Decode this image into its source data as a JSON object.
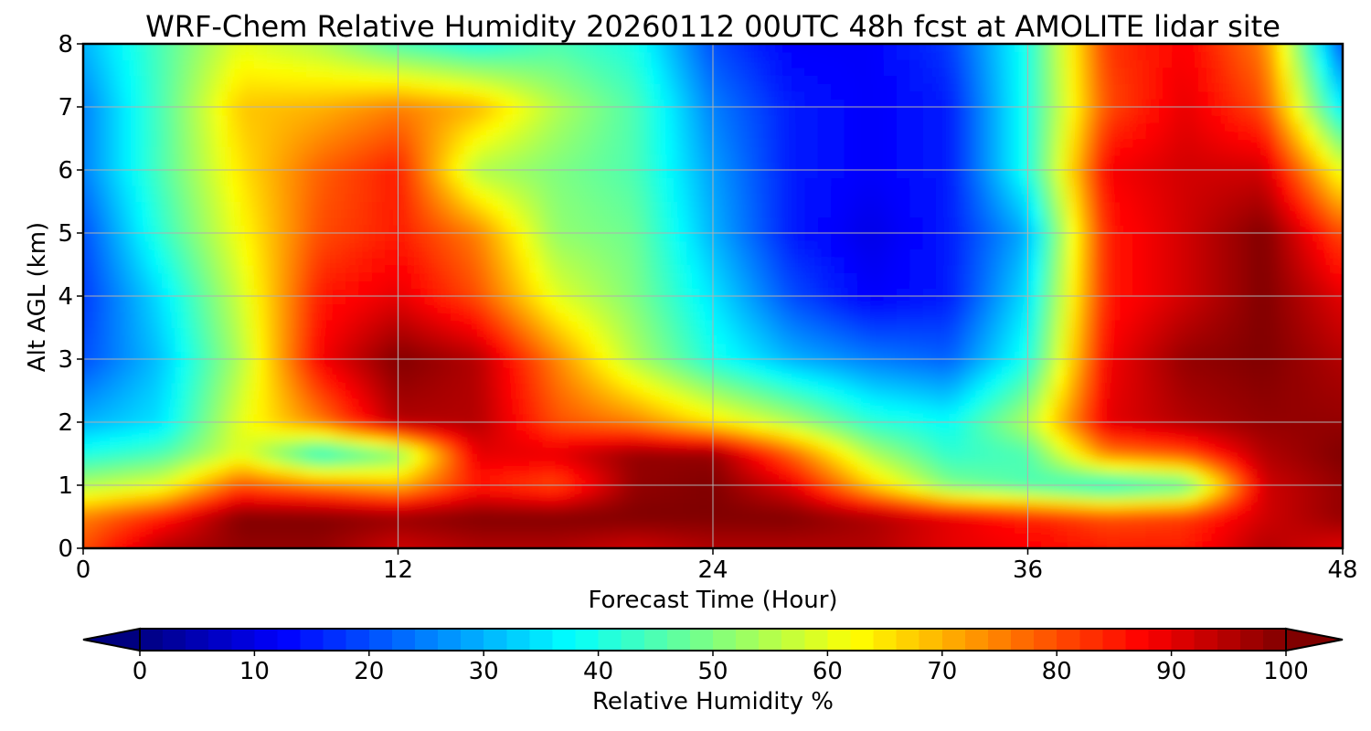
{
  "chart_data": {
    "type": "heatmap",
    "title": "WRF-Chem Relative Humidity 20260112 00UTC 48h fcst at AMOLITE lidar site",
    "xlabel": "Forecast Time (Hour)",
    "ylabel": "Alt AGL (km)",
    "xlim": [
      0,
      48
    ],
    "ylim": [
      0,
      8
    ],
    "x_ticks": [
      "0",
      "12",
      "24",
      "36",
      "48"
    ],
    "y_ticks": [
      "0",
      "1",
      "2",
      "3",
      "4",
      "5",
      "6",
      "7",
      "8"
    ],
    "grid": true,
    "colormap": "jet",
    "colorbar": {
      "label": "Relative Humidity %",
      "range": [
        0,
        100
      ],
      "extend": "both",
      "ticks": [
        "0",
        "10",
        "20",
        "30",
        "40",
        "50",
        "60",
        "70",
        "80",
        "90",
        "100"
      ]
    },
    "x_hours": [
      0,
      3,
      6,
      9,
      12,
      15,
      18,
      21,
      24,
      27,
      30,
      33,
      36,
      39,
      42,
      45,
      48
    ],
    "y_km": [
      0,
      0.5,
      1,
      1.5,
      2,
      3,
      4,
      5,
      6,
      7,
      8
    ],
    "z_rh_percent": [
      [
        80,
        95,
        98,
        98,
        92,
        95,
        95,
        92,
        95,
        95,
        95,
        90,
        88,
        85,
        85,
        95,
        90
      ],
      [
        75,
        85,
        100,
        100,
        98,
        100,
        100,
        100,
        100,
        100,
        96,
        90,
        85,
        80,
        82,
        92,
        98
      ],
      [
        55,
        60,
        80,
        75,
        70,
        85,
        80,
        98,
        100,
        90,
        68,
        50,
        45,
        40,
        45,
        92,
        98
      ],
      [
        40,
        45,
        60,
        40,
        50,
        90,
        90,
        98,
        98,
        78,
        55,
        42,
        45,
        75,
        80,
        95,
        100
      ],
      [
        30,
        35,
        60,
        75,
        95,
        95,
        80,
        75,
        65,
        55,
        42,
        38,
        55,
        90,
        95,
        98,
        98
      ],
      [
        20,
        32,
        55,
        88,
        100,
        95,
        75,
        55,
        40,
        30,
        25,
        22,
        40,
        88,
        98,
        100,
        95
      ],
      [
        18,
        35,
        58,
        85,
        90,
        80,
        60,
        50,
        35,
        20,
        12,
        15,
        35,
        85,
        92,
        100,
        90
      ],
      [
        20,
        42,
        62,
        80,
        85,
        75,
        52,
        48,
        30,
        15,
        10,
        15,
        30,
        85,
        92,
        100,
        80
      ],
      [
        25,
        45,
        65,
        78,
        85,
        55,
        50,
        45,
        28,
        15,
        12,
        15,
        40,
        88,
        92,
        92,
        60
      ],
      [
        25,
        45,
        68,
        70,
        75,
        70,
        55,
        45,
        25,
        15,
        12,
        15,
        40,
        80,
        90,
        80,
        35
      ],
      [
        30,
        45,
        60,
        55,
        45,
        40,
        45,
        40,
        20,
        12,
        12,
        18,
        40,
        82,
        88,
        75,
        20
      ]
    ]
  }
}
